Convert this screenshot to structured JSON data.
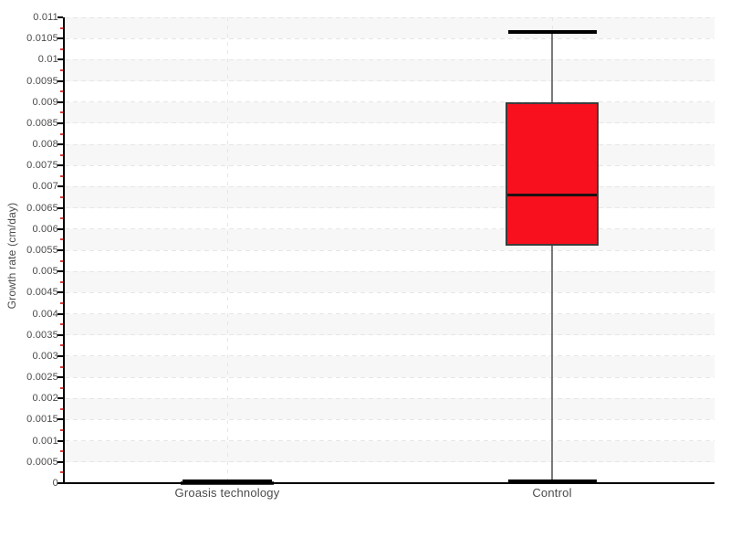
{
  "chart_data": {
    "type": "box",
    "title": "",
    "ylabel": "Growth rate (cm/day)",
    "xlabel": "",
    "ylim": [
      0,
      0.011
    ],
    "ytick_step": 0.0005,
    "ytick_labels": [
      "0",
      "0.0005",
      "0.001",
      "0.0015",
      "0.002",
      "0.0025",
      "0.003",
      "0.0035",
      "0.004",
      "0.0045",
      "0.005",
      "0.0055",
      "0.006",
      "0.0065",
      "0.007",
      "0.0075",
      "0.008",
      "0.0085",
      "0.009",
      "0.0095",
      "0.01",
      "0.0105",
      "0.011"
    ],
    "categories": [
      "Groasis technology",
      "Control"
    ],
    "series": [
      {
        "label": "Groasis technology",
        "whisker_low": 5e-05,
        "q1": 5e-05,
        "median": 5e-05,
        "q3": 5e-05,
        "whisker_high": 5e-05
      },
      {
        "label": "Control",
        "whisker_low": 5e-05,
        "q1": 0.0056,
        "median": 0.0068,
        "q3": 0.009,
        "whisker_high": 0.01065
      }
    ],
    "legend": "none",
    "grid": {
      "horizontal_gridlines": "dashed",
      "vertical_gridlines_at_categories": "dashed",
      "alternating_row_bands": true,
      "minor_ticks": "red, between each labeled tick"
    }
  },
  "colors": {
    "box_fill": "#f8101e",
    "box_border": "#3d3d3d",
    "median_line": "#1e1212",
    "whisker_line": "#7a7a7a",
    "whisker_cap": "#000000",
    "axis": "#000000",
    "major_tick": "#000000",
    "minor_tick": "#e03c3c",
    "gridline": "#e6e6e6",
    "band": "#f7f7f7",
    "text": "#4a4a4a",
    "background": "#ffffff"
  }
}
